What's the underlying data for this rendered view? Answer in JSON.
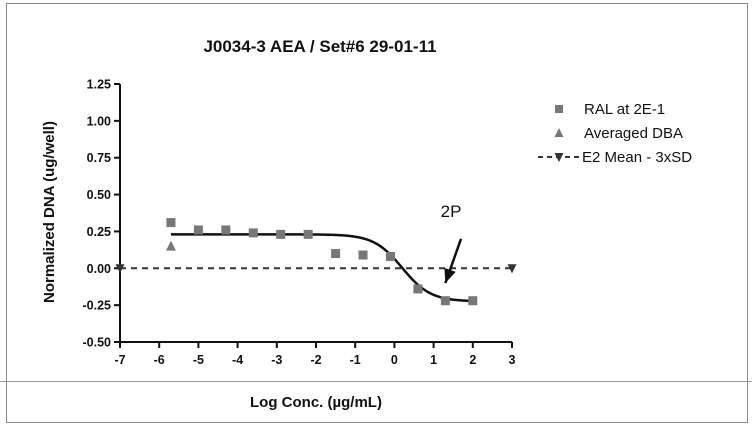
{
  "chart_data": {
    "type": "scatter",
    "title": "J0034-3 AEA / Set#6 29-01-11",
    "xlabel": "Log Conc. (µg/mL)",
    "ylabel": "Normalized DNA (ug/well)",
    "xlim": [
      -7,
      3
    ],
    "ylim": [
      -0.5,
      1.25
    ],
    "xticks": [
      "-7",
      "-6",
      "-5",
      "-4",
      "-3",
      "-2",
      "-1",
      "0",
      "1",
      "2",
      "3"
    ],
    "yticks": [
      "1.25",
      "1.00",
      "0.75",
      "0.50",
      "0.25",
      "0.00",
      "-0.25",
      "-0.50"
    ],
    "grid": false,
    "legend_position": "right",
    "series": [
      {
        "name": "RAL at 2E-1",
        "marker": "square",
        "color": "#777777",
        "points": [
          {
            "x": -5.7,
            "y": 0.31
          },
          {
            "x": -5.0,
            "y": 0.26
          },
          {
            "x": -4.3,
            "y": 0.26
          },
          {
            "x": -3.6,
            "y": 0.24
          },
          {
            "x": -2.9,
            "y": 0.23
          },
          {
            "x": -2.2,
            "y": 0.23
          },
          {
            "x": -1.5,
            "y": 0.1
          },
          {
            "x": -0.8,
            "y": 0.09
          },
          {
            "x": -0.1,
            "y": 0.08
          },
          {
            "x": 0.6,
            "y": -0.14
          },
          {
            "x": 1.3,
            "y": -0.22
          },
          {
            "x": 2.0,
            "y": -0.22
          }
        ]
      },
      {
        "name": "Averaged DBA",
        "marker": "triangle",
        "color": "#777777",
        "points": [
          {
            "x": -5.7,
            "y": 0.15
          }
        ]
      },
      {
        "name": "E2 Mean - 3xSD",
        "marker": "triangle-down",
        "line": "dashed",
        "color": "#333333",
        "points": [
          {
            "x": -7,
            "y": 0.0
          },
          {
            "x": 3,
            "y": 0.0
          }
        ]
      }
    ],
    "fit_curve": {
      "type": "sigmoid",
      "top": 0.23,
      "bottom": -0.225,
      "log_ec50": 0.2,
      "hill": -1.2,
      "x_range": [
        -5.7,
        2.0
      ],
      "color": "#111111"
    },
    "annotation": {
      "text": "2P",
      "arrow_from": {
        "x": 1.7,
        "y": 0.2
      },
      "arrow_to": {
        "x": 1.3,
        "y": -0.1
      }
    }
  }
}
